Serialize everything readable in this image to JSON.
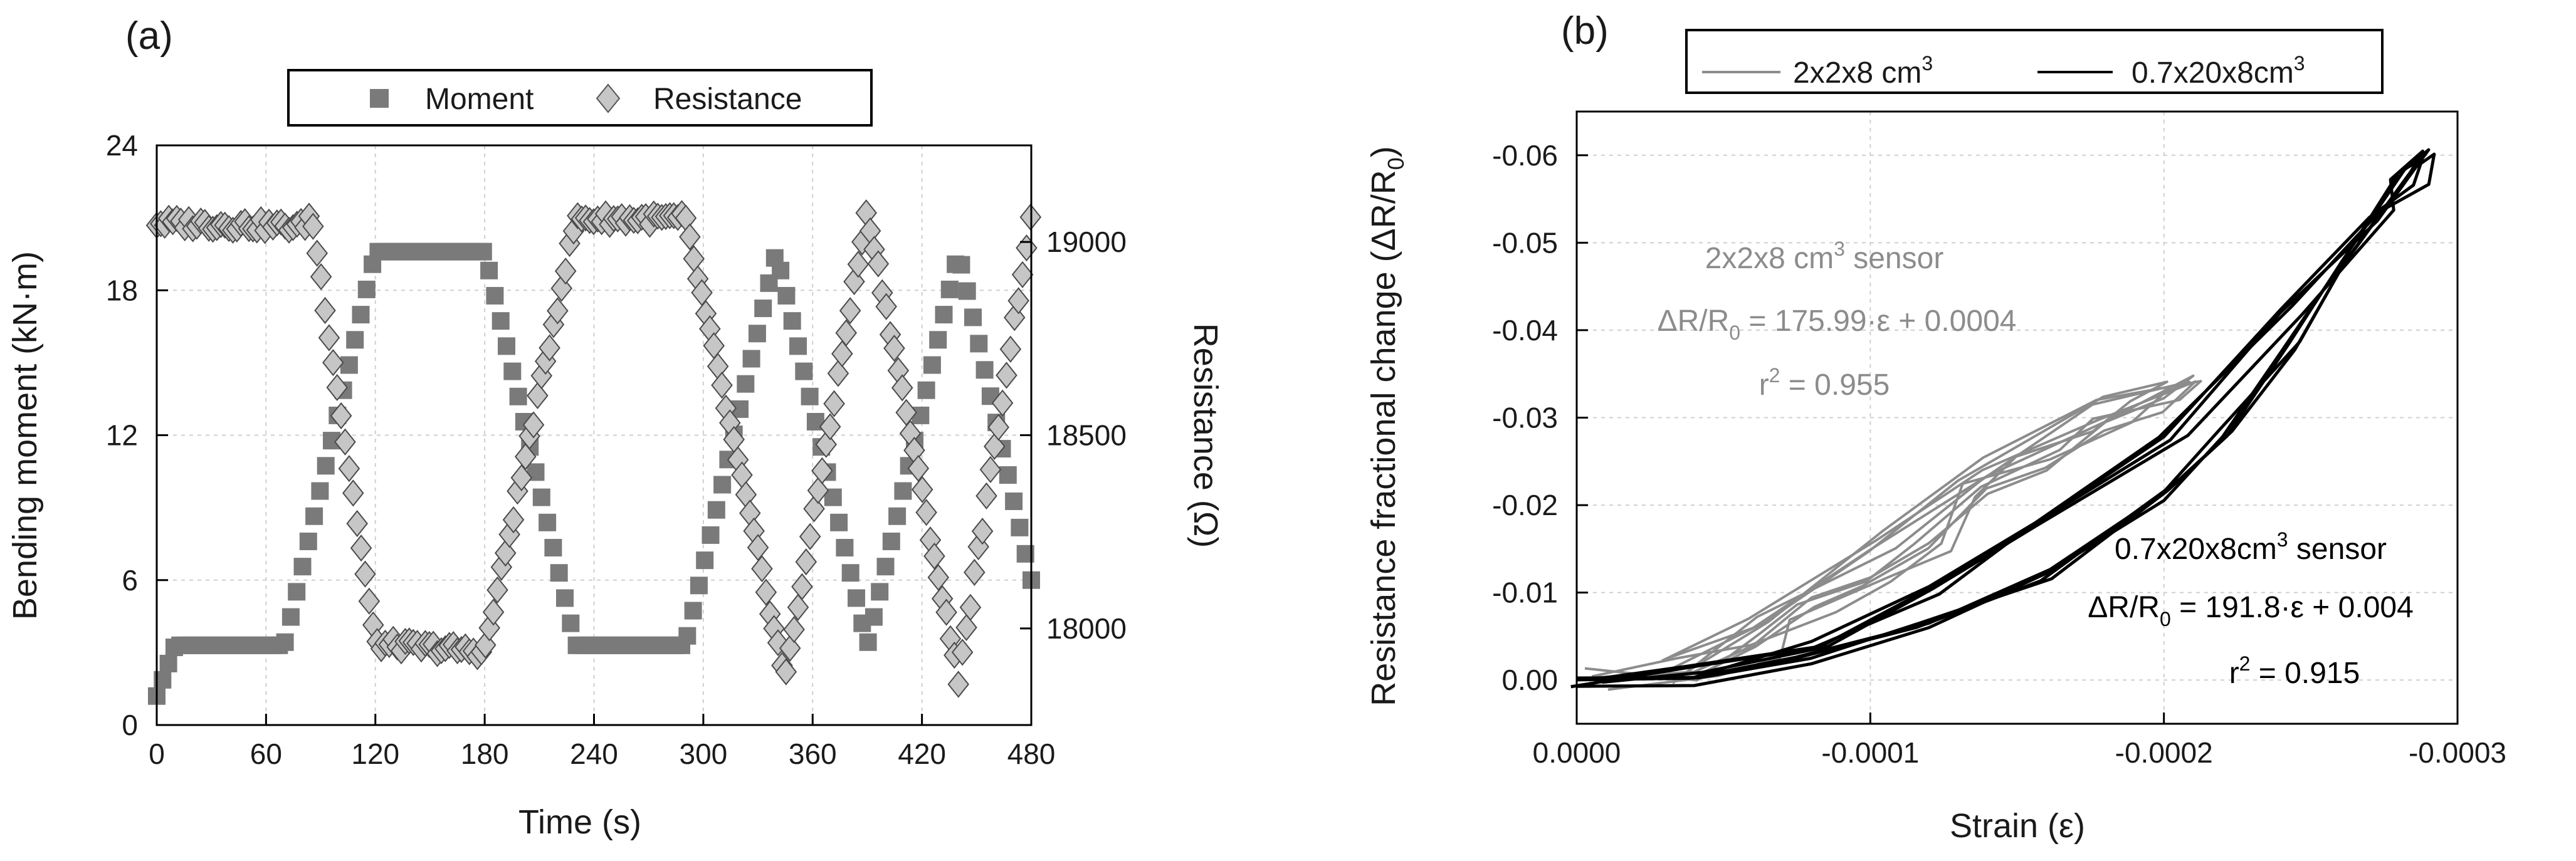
{
  "chart_data": [
    {
      "type": "line",
      "panel_label": "(a)",
      "xlabel": "Time (s)",
      "ylabel": "Bending moment (kN·m)",
      "y2label": "Resistance (Ω)",
      "xlim": [
        0,
        480
      ],
      "ylim": [
        0,
        24
      ],
      "y2lim": [
        17750,
        19250
      ],
      "xticks": [
        "0",
        "60",
        "120",
        "180",
        "240",
        "300",
        "360",
        "420",
        "480"
      ],
      "yticks": [
        "0",
        "6",
        "12",
        "18",
        "24"
      ],
      "y2ticks": [
        "18000",
        "18500",
        "19000"
      ],
      "grid": true,
      "legend": "top-center",
      "series": [
        {
          "name": "Moment",
          "marker": "square",
          "color": "#7a7a7a",
          "axis": "left",
          "points": [
            [
              0,
              1.2
            ],
            [
              10,
              3.3
            ],
            [
              70,
              3.3
            ],
            [
              120,
              19.6
            ],
            [
              180,
              19.6
            ],
            [
              230,
              3.3
            ],
            [
              290,
              3.3
            ],
            [
              340,
              19.6
            ],
            [
              390,
              3.3
            ],
            [
              440,
              19.6
            ],
            [
              480,
              6.0
            ]
          ]
        },
        {
          "name": "Resistance",
          "marker": "diamond",
          "color": "#c6c6c6",
          "axis": "right",
          "points": [
            [
              0,
              19050
            ],
            [
              80,
              19040
            ],
            [
              85,
              19070
            ],
            [
              120,
              17960
            ],
            [
              180,
              17940
            ],
            [
              230,
              19060
            ],
            [
              290,
              19060
            ],
            [
              345,
              17870
            ],
            [
              390,
              19080
            ],
            [
              440,
              17870
            ],
            [
              480,
              19070
            ]
          ]
        }
      ]
    },
    {
      "type": "line",
      "panel_label": "(b)",
      "xlabel": "Strain (ε)",
      "ylabel": "Resistance fractional change (ΔR/R0)",
      "xlim": [
        0,
        -0.0003
      ],
      "ylim": [
        0.005,
        -0.065
      ],
      "xticks": [
        "0.0000",
        "-0.0001",
        "-0.0002",
        "-0.0003"
      ],
      "yticks": [
        "0.00",
        "-0.01",
        "-0.02",
        "-0.03",
        "-0.04",
        "-0.05",
        "-0.06"
      ],
      "grid": true,
      "legend": "top-center",
      "series": [
        {
          "name": "2x2x8 cm3",
          "color": "#8c8c8c",
          "points": [
            [
              0,
              -0.0002
            ],
            [
              -4e-05,
              -0.001
            ],
            [
              -6e-05,
              -0.004
            ],
            [
              -8e-05,
              -0.008
            ],
            [
              -0.0001,
              -0.012
            ],
            [
              -0.00012,
              -0.016
            ],
            [
              -0.00014,
              -0.021
            ],
            [
              -0.00016,
              -0.025
            ],
            [
              -0.00018,
              -0.029
            ],
            [
              -0.0002,
              -0.032
            ],
            [
              -0.00021,
              -0.034
            ],
            [
              -0.00018,
              -0.031
            ],
            [
              -0.00014,
              -0.024
            ],
            [
              -0.0001,
              -0.016
            ],
            [
              -6e-05,
              -0.007
            ],
            [
              -3e-05,
              -0.001
            ]
          ]
        },
        {
          "name": "0.7x20x8cm3",
          "color": "#000000",
          "points": [
            [
              0,
              0.0005
            ],
            [
              -4e-05,
              -0.0001
            ],
            [
              -8e-05,
              -0.002
            ],
            [
              -0.00012,
              -0.006
            ],
            [
              -0.00016,
              -0.012
            ],
            [
              -0.0002,
              -0.021
            ],
            [
              -0.00022,
              -0.028
            ],
            [
              -0.00024,
              -0.038
            ],
            [
              -0.00026,
              -0.048
            ],
            [
              -0.00028,
              -0.058
            ],
            [
              -0.000288,
              -0.06
            ],
            [
              -0.000285,
              -0.057
            ],
            [
              -0.00027,
              -0.053
            ],
            [
              -0.00024,
              -0.042
            ],
            [
              -0.0002,
              -0.028
            ],
            [
              -0.00016,
              -0.018
            ],
            [
              -0.00012,
              -0.01
            ],
            [
              -8e-05,
              -0.004
            ],
            [
              -4e-05,
              -0.001
            ],
            [
              0,
              0.0002
            ]
          ]
        }
      ],
      "annotations": {
        "gray": {
          "title": "2x2x8 cm3 sensor",
          "eq": "ΔR/R0 = 175.99·ε + 0.0004",
          "r2": "r2 = 0.955"
        },
        "black": {
          "title": "0.7x20x8cm3 sensor",
          "eq": "ΔR/R0 = 191.8·ε + 0.004",
          "r2": "r2 = 0.915"
        }
      }
    }
  ],
  "panel_a": {
    "label": "(a)",
    "legend": {
      "moment": "Moment",
      "resistance": "Resistance"
    },
    "xlabel": "Time (s)",
    "ylabel": "Bending moment (kN·m)",
    "y2label": "Resistance (Ω)",
    "xticks": [
      "0",
      "60",
      "120",
      "180",
      "240",
      "300",
      "360",
      "420",
      "480"
    ],
    "yticks": [
      "0",
      "6",
      "12",
      "18",
      "24"
    ],
    "y2ticks": [
      "18000",
      "18500",
      "19000"
    ]
  },
  "panel_b": {
    "label": "(b)",
    "legend": {
      "gray_base": "2x2x8 cm",
      "gray_sup": "3",
      "black_base": "0.7x20x8cm",
      "black_sup": "3"
    },
    "xlabel": "Strain (ε)",
    "ylabel_pre": "Resistance fractional change (ΔR/R",
    "ylabel_sub": "0",
    "ylabel_post": ")",
    "xticks": [
      "0.0000",
      "-0.0001",
      "-0.0002",
      "-0.0003"
    ],
    "yticks": [
      "0.00",
      "-0.01",
      "-0.02",
      "-0.03",
      "-0.04",
      "-0.05",
      "-0.06"
    ],
    "ann_gray": {
      "title_pre": "2x2x8 cm",
      "title_sup": "3",
      "title_post": " sensor",
      "eq_pre": "ΔR/R",
      "eq_sub": "0",
      "eq_post": " = 175.99·ε + 0.0004",
      "r2_pre": "r",
      "r2_sup": "2",
      "r2_post": " = 0.955"
    },
    "ann_black": {
      "title_pre": "0.7x20x8cm",
      "title_sup": "3",
      "title_post": " sensor",
      "eq_pre": "ΔR/R",
      "eq_sub": "0",
      "eq_post": " = 191.8·ε + 0.004",
      "r2_pre": "r",
      "r2_sup": "2",
      "r2_post": " = 0.915"
    }
  }
}
